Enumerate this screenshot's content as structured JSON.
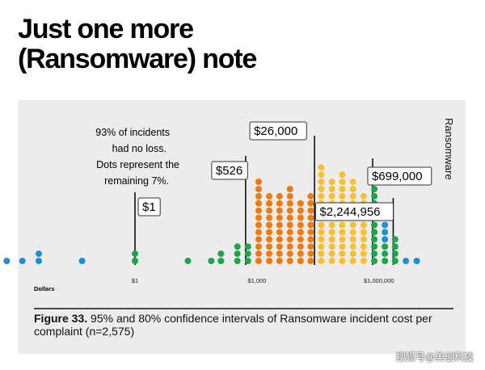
{
  "slide": {
    "title_line1": "Just one more",
    "title_line2": "(Ransomware) note"
  },
  "chart_data": {
    "type": "scatter",
    "subtype": "dot-histogram",
    "series_label": "Ransomware",
    "xlabel": "Dollars",
    "xscale": "log",
    "xlim": [
      0.0001,
      100000000
    ],
    "x_ticks": [
      {
        "value": 1,
        "label": "$1"
      },
      {
        "value": 1000,
        "label": "$1,000"
      },
      {
        "value": 1000000,
        "label": "$1,000,000"
      }
    ],
    "note": [
      "93% of incidents",
      "had no loss.",
      "Dots represent the",
      "remaining 7%."
    ],
    "colors": {
      "outside": "#1f8fd1",
      "interval_95": "#1fa34a",
      "interval_80": "#f07a12",
      "upper_80": "#f8c030",
      "panel_bg": "#ececec"
    },
    "markers": [
      {
        "value": 1,
        "label": "$1"
      },
      {
        "value": 526,
        "label": "$526"
      },
      {
        "value": 26000,
        "label": "$26,000"
      },
      {
        "value": 699000,
        "label": "$699,000"
      },
      {
        "value": 2244956,
        "label": "$2,244,956"
      }
    ],
    "columns": [
      {
        "x": 0.0007,
        "dots": 1,
        "color": "outside"
      },
      {
        "x": 0.0017,
        "dots": 1,
        "color": "outside"
      },
      {
        "x": 0.0043,
        "dots": 2,
        "color": "outside"
      },
      {
        "x": 0.05,
        "dots": 1,
        "color": "outside"
      },
      {
        "x": 1,
        "dots": 2,
        "color": "interval_95"
      },
      {
        "x": 20,
        "dots": 1,
        "color": "interval_95"
      },
      {
        "x": 75,
        "dots": 1,
        "color": "interval_95"
      },
      {
        "x": 130,
        "dots": 2,
        "color": "interval_95"
      },
      {
        "x": 330,
        "dots": 3,
        "color": "interval_95"
      },
      {
        "x": 600,
        "dots": 3,
        "color": "interval_95"
      },
      {
        "x": 1100,
        "dots": 12,
        "color": "interval_80"
      },
      {
        "x": 2000,
        "dots": 10,
        "color": "interval_80"
      },
      {
        "x": 3600,
        "dots": 10,
        "color": "interval_80"
      },
      {
        "x": 6500,
        "dots": 11,
        "color": "interval_80"
      },
      {
        "x": 11800,
        "dots": 9,
        "color": "interval_80"
      },
      {
        "x": 21000,
        "dots": 10,
        "color": "interval_80"
      },
      {
        "x": 38000,
        "dots": 14,
        "color": "upper_80"
      },
      {
        "x": 70000,
        "dots": 12,
        "color": "upper_80"
      },
      {
        "x": 125000,
        "dots": 13,
        "color": "upper_80"
      },
      {
        "x": 230000,
        "dots": 12,
        "color": "upper_80"
      },
      {
        "x": 420000,
        "dots": 10,
        "color": "upper_80"
      },
      {
        "x": 770000,
        "dots": 11,
        "color": "interval_95"
      },
      {
        "x": 1400000,
        "dots": 3,
        "color": "interval_95"
      },
      {
        "x": 1400000,
        "dots": 4,
        "color": "outside",
        "stack_offset": 3
      },
      {
        "x": 2500000,
        "dots": 4,
        "color": "interval_95"
      },
      {
        "x": 4600000,
        "dots": 1,
        "color": "outside"
      },
      {
        "x": 8500000,
        "dots": 1,
        "color": "outside"
      }
    ]
  },
  "caption": {
    "label": "Figure 33.",
    "text": " 95% and 80% confidence intervals of Ransomware incident cost per complaint (n=2,575)"
  },
  "watermark": "搜狐号@美创科技"
}
